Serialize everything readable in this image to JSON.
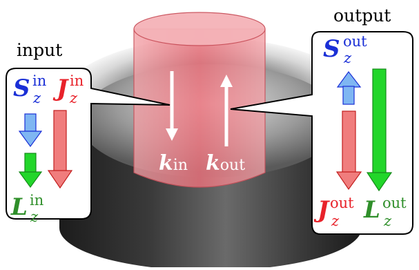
{
  "captions": {
    "input": "input",
    "output": "output"
  },
  "beam": {
    "in_symbol": "k",
    "in_sub": "in",
    "out_symbol": "k",
    "out_sub": "out"
  },
  "input_box": {
    "spin": {
      "symbol": "S",
      "sup": "in",
      "sub": "z"
    },
    "total": {
      "symbol": "J",
      "sup": "in",
      "sub": "z"
    },
    "orbital": {
      "symbol": "L",
      "sup": "in",
      "sub": "z"
    }
  },
  "output_box": {
    "spin": {
      "symbol": "S",
      "sup": "out",
      "sub": "z"
    },
    "total": {
      "symbol": "J",
      "sup": "out",
      "sub": "z"
    },
    "orbital": {
      "symbol": "L",
      "sup": "out",
      "sub": "z"
    }
  },
  "colors": {
    "spin": "#1a2fd6",
    "total": "#e8222a",
    "orbital": "#2f8f2a",
    "spin_arrow": "#7fb6f2",
    "total_arrow": "#f07d7d",
    "orbital_arrow": "#22d62a",
    "beam": "#ee7f86"
  }
}
